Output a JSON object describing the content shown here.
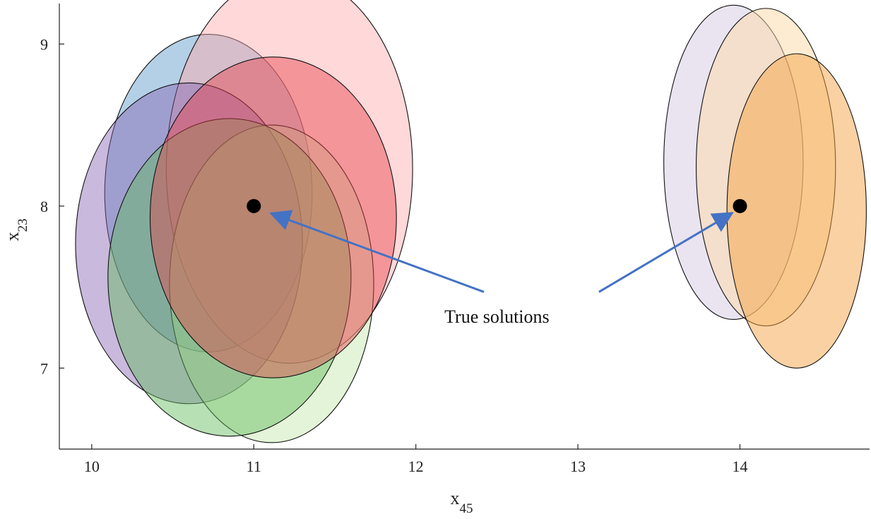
{
  "chart_data": {
    "type": "scatter",
    "title": "",
    "xlabel": {
      "base": "x",
      "sub": "45"
    },
    "ylabel": {
      "base": "x",
      "sub": "23"
    },
    "xlim": [
      9.8,
      14.8
    ],
    "ylim": [
      6.5,
      9.25
    ],
    "xticks": [
      10,
      11,
      12,
      13,
      14
    ],
    "yticks": [
      7,
      8,
      9
    ],
    "grid": false,
    "legend": "none",
    "points": [
      {
        "x": 11,
        "y": 8
      },
      {
        "x": 14,
        "y": 8
      }
    ],
    "ellipses": [
      {
        "cx": 10.72,
        "cy": 8.08,
        "rx": 0.64,
        "ry": 0.98,
        "fill": "#76a9d2",
        "opacity": 0.55
      },
      {
        "cx": 11.22,
        "cy": 8.23,
        "rx": 0.76,
        "ry": 1.2,
        "fill": "#ffa8ab",
        "opacity": 0.45
      },
      {
        "cx": 10.6,
        "cy": 7.77,
        "rx": 0.7,
        "ry": 0.99,
        "fill": "#8464b4",
        "opacity": 0.45
      },
      {
        "cx": 11.11,
        "cy": 7.52,
        "rx": 0.63,
        "ry": 0.98,
        "fill": "#c4e7a8",
        "opacity": 0.45
      },
      {
        "cx": 10.85,
        "cy": 7.56,
        "rx": 0.75,
        "ry": 0.98,
        "fill": "#5fba5a",
        "opacity": 0.45
      },
      {
        "cx": 11.12,
        "cy": 7.93,
        "rx": 0.76,
        "ry": 0.99,
        "fill": "#e6444e",
        "opacity": 0.45
      },
      {
        "cx": 13.96,
        "cy": 8.27,
        "rx": 0.43,
        "ry": 0.97,
        "fill": "#d8cde6",
        "opacity": 0.55
      },
      {
        "cx": 14.16,
        "cy": 8.24,
        "rx": 0.43,
        "ry": 0.98,
        "fill": "#fcd9a6",
        "opacity": 0.5
      },
      {
        "cx": 14.35,
        "cy": 7.97,
        "rx": 0.43,
        "ry": 0.97,
        "fill": "#f6a447",
        "opacity": 0.5
      }
    ],
    "annotation": {
      "text": "True solutions",
      "text_x": 12.5,
      "text_y": 7.28,
      "arrows": [
        {
          "from_x": 12.42,
          "from_y": 7.47,
          "to_x": 11.12,
          "to_y": 7.95
        },
        {
          "from_x": 13.13,
          "from_y": 7.47,
          "to_x": 13.94,
          "to_y": 7.95
        }
      ],
      "arrow_color": "#4472c4"
    }
  }
}
